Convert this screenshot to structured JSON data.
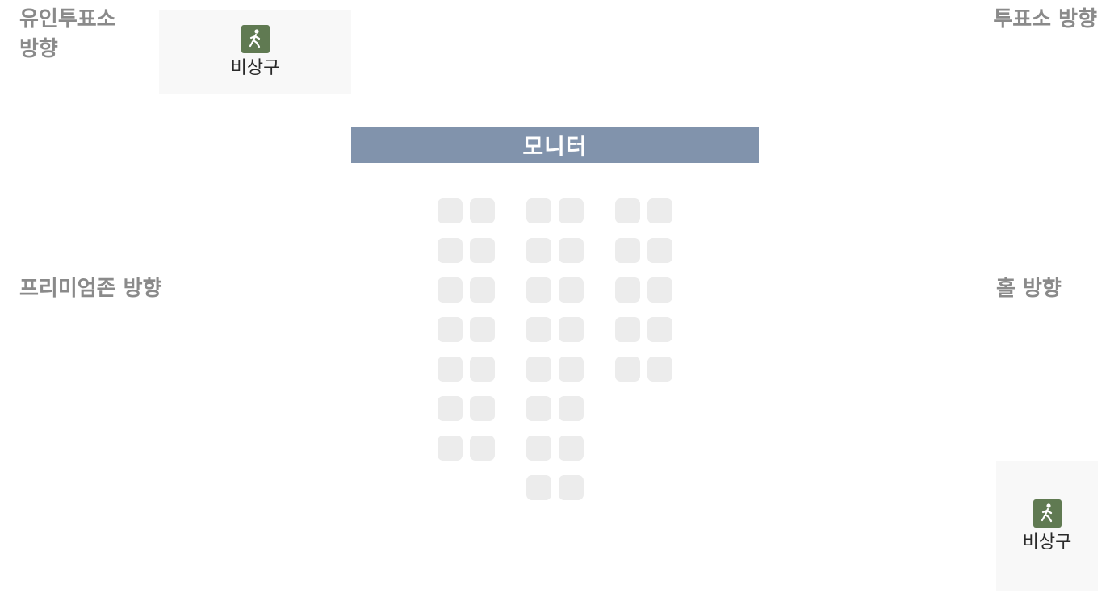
{
  "directions": {
    "unmanned_booth": "유인투표소 방향",
    "booth": "투표소 방향",
    "premium_zone": "프리미엄존 방향",
    "hall": "홀 방향"
  },
  "emergency_exits": [
    {
      "label": "비상구",
      "icon": "running-person-exit-icon"
    },
    {
      "label": "비상구",
      "icon": "running-person-exit-icon"
    }
  ],
  "monitor": {
    "label": "모니터"
  },
  "seating": {
    "blocks": [
      {
        "block": "left",
        "rows": 7,
        "seats_per_row": 2
      },
      {
        "block": "center",
        "rows": 8,
        "seats_per_row": 2
      },
      {
        "block": "right",
        "rows": 5,
        "seats_per_row": 2
      }
    ],
    "seat_color": "#ececec"
  },
  "colors": {
    "monitor": "#8193ac",
    "exit_icon": "#607a52",
    "direction_text": "#8a8a8a"
  }
}
